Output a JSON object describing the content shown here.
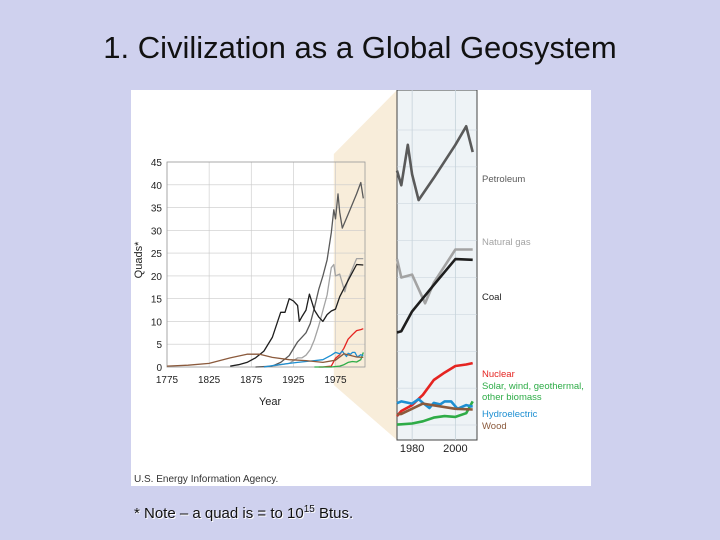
{
  "slide": {
    "title": "1. Civilization as a Global Geosystem",
    "footnote": {
      "prefix": "* Note – a quad is = to 10",
      "exponent": "15",
      "suffix": " Btus."
    }
  },
  "figure": {
    "source_credit": "U.S. Energy Information Agency."
  },
  "chart_data": [
    {
      "type": "line",
      "panel": "main",
      "xlabel": "Year",
      "ylabel": "Quads*",
      "xlim": [
        1775,
        2010
      ],
      "ylim": [
        0,
        45
      ],
      "x_ticks": [
        "1775",
        "1825",
        "1875",
        "1925",
        "1975"
      ],
      "y_ticks": [
        "0",
        "5",
        "10",
        "15",
        "20",
        "25",
        "30",
        "35",
        "40",
        "45"
      ],
      "grid": true,
      "series": [
        {
          "name": "Petroleum",
          "color": "#5a5a5a",
          "x": [
            1880,
            1900,
            1910,
            1920,
            1930,
            1940,
            1945,
            1950,
            1955,
            1960,
            1965,
            1970,
            1973,
            1975,
            1978,
            1980,
            1983,
            1990,
            2000,
            2005,
            2008
          ],
          "y": [
            0,
            0.2,
            1,
            2.5,
            5.5,
            7.5,
            9.5,
            13,
            17,
            20,
            23.5,
            29.5,
            34.5,
            32.5,
            38,
            34,
            30.5,
            33.5,
            38,
            40.5,
            37
          ]
        },
        {
          "name": "Natural gas",
          "color": "#a3a3a3",
          "x": [
            1900,
            1910,
            1920,
            1930,
            1935,
            1940,
            1945,
            1950,
            1955,
            1960,
            1965,
            1970,
            1973,
            1975,
            1980,
            1986,
            1990,
            2000,
            2008
          ],
          "y": [
            0.2,
            0.5,
            0.8,
            2,
            2,
            2.6,
            3.8,
            6,
            9,
            12.4,
            15.8,
            21.8,
            22.5,
            20,
            20.4,
            16.5,
            19.3,
            23.8,
            23.8
          ]
        },
        {
          "name": "Coal",
          "color": "#1e1e1e",
          "x": [
            1850,
            1860,
            1870,
            1880,
            1890,
            1900,
            1910,
            1915,
            1920,
            1925,
            1930,
            1932,
            1935,
            1940,
            1944,
            1950,
            1955,
            1960,
            1965,
            1970,
            1975,
            1980,
            1990,
            2000,
            2008
          ],
          "y": [
            0.2,
            0.5,
            1,
            2,
            3.5,
            6.5,
            12,
            12,
            15,
            14.5,
            13.5,
            10,
            11,
            12.5,
            16,
            12.5,
            11,
            10,
            11.5,
            12.3,
            12.7,
            15.4,
            19,
            22.5,
            22.4
          ]
        },
        {
          "name": "Nuclear",
          "color": "#e52421",
          "x": [
            1955,
            1960,
            1965,
            1970,
            1975,
            1980,
            1985,
            1990,
            1995,
            2000,
            2005,
            2008
          ],
          "y": [
            0,
            0,
            0.1,
            0.2,
            1.9,
            2.7,
            4.1,
            6.1,
            7.1,
            8,
            8.2,
            8.4
          ]
        },
        {
          "name": "Solar, wind, geothermal, other biomass",
          "color": "#2eac47",
          "x": [
            1950,
            1960,
            1970,
            1975,
            1980,
            1985,
            1990,
            1995,
            2000,
            2005,
            2008
          ],
          "y": [
            0,
            0,
            0,
            0.1,
            0.2,
            0.5,
            1,
            1.2,
            1.1,
            1.6,
            3.2
          ]
        },
        {
          "name": "Hydroelectric",
          "color": "#1d8fd2",
          "x": [
            1890,
            1900,
            1920,
            1930,
            1940,
            1950,
            1960,
            1970,
            1975,
            1980,
            1983,
            1985,
            1988,
            1990,
            1993,
            1995,
            1998,
            2001,
            2005,
            2008
          ],
          "y": [
            0,
            0.3,
            0.8,
            1,
            1.2,
            1.4,
            1.6,
            2.6,
            3.2,
            2.9,
            3.5,
            3,
            2.3,
            3,
            2.8,
            3.2,
            3.2,
            2.2,
            2.7,
            2.5
          ]
        },
        {
          "name": "Wood",
          "color": "#8b5a3c",
          "x": [
            1775,
            1800,
            1825,
            1850,
            1870,
            1885,
            1900,
            1920,
            1940,
            1960,
            1975,
            1985,
            2000,
            2008
          ],
          "y": [
            0.2,
            0.4,
            0.8,
            2,
            2.8,
            2.8,
            2.1,
            1.6,
            1.4,
            1,
            1.5,
            2.9,
            2.2,
            2.1
          ]
        }
      ]
    },
    {
      "type": "line",
      "panel": "zoom",
      "xlim": [
        1973,
        2010
      ],
      "ylim": [
        0,
        40
      ],
      "x_ticks": [
        "1980",
        "2000"
      ],
      "grid": true,
      "series_labels": [
        "Petroleum",
        "Natural gas",
        "Coal",
        "Nuclear",
        "Solar, wind, geothermal, other biomass",
        "Hydroelectric",
        "Wood"
      ]
    }
  ]
}
